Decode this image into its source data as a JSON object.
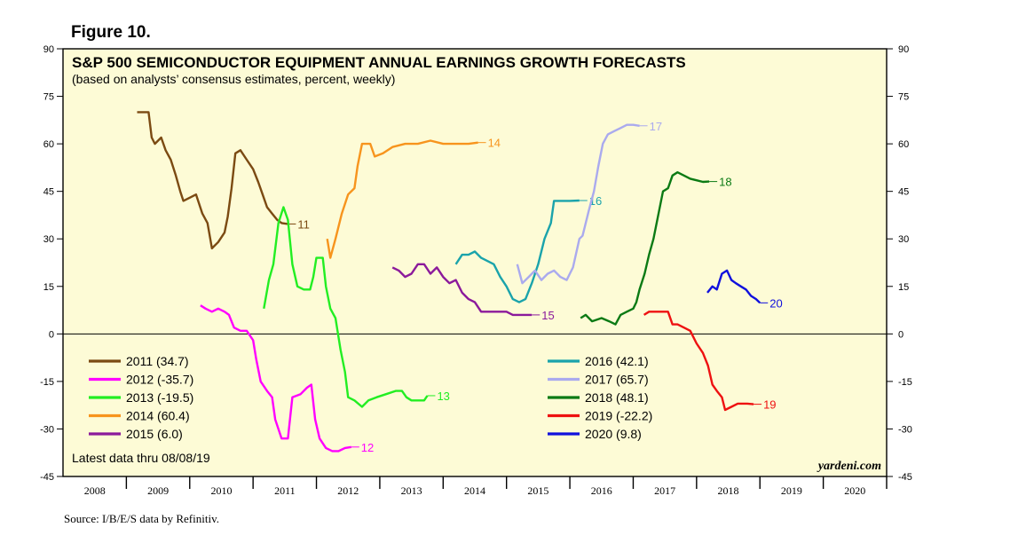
{
  "figure_label": "Figure 10.",
  "source": "Source: I/B/E/S data by Refinitiv.",
  "colors": {
    "background": "#fdfbd6",
    "2011": "#7b4a12",
    "2012": "#ff00ff",
    "2013": "#22ee22",
    "2014": "#f7941d",
    "2015": "#8b1a9b",
    "2016": "#1aa3ab",
    "2017": "#aaaaee",
    "2018": "#0b7a14",
    "2019": "#ee1111",
    "2020": "#1010dd"
  },
  "chart_data": {
    "type": "line",
    "title": "S&P 500 SEMICONDUCTOR EQUIPMENT ANNUAL EARNINGS GROWTH FORECASTS",
    "subtitle": "(based on analysts’ consensus estimates, percent, weekly)",
    "note": "Latest data thru 08/08/19",
    "watermark": "yardeni.com",
    "xlim": [
      2008,
      2021
    ],
    "ylim": [
      -45,
      90
    ],
    "yticks": [
      90,
      75,
      60,
      45,
      30,
      15,
      0,
      -15,
      -30,
      -45
    ],
    "ytick_labels": [
      "90",
      "75",
      "60",
      "45",
      "30",
      "15",
      "0",
      "-15",
      "-30",
      "-45"
    ],
    "xtick_labels": [
      "2008",
      "2009",
      "2010",
      "2011",
      "2012",
      "2013",
      "2014",
      "2015",
      "2016",
      "2017",
      "2018",
      "2019",
      "2020"
    ],
    "series": [
      {
        "name": "2011",
        "legend": "2011 (34.7)",
        "end_label": "11",
        "points": [
          [
            2009.17,
            70
          ],
          [
            2009.35,
            70
          ],
          [
            2009.4,
            62
          ],
          [
            2009.45,
            60
          ],
          [
            2009.55,
            62
          ],
          [
            2009.62,
            58
          ],
          [
            2009.7,
            55
          ],
          [
            2009.78,
            50
          ],
          [
            2009.85,
            45
          ],
          [
            2009.9,
            42
          ],
          [
            2010.0,
            43
          ],
          [
            2010.1,
            44
          ],
          [
            2010.2,
            38
          ],
          [
            2010.28,
            35
          ],
          [
            2010.35,
            27
          ],
          [
            2010.45,
            29
          ],
          [
            2010.55,
            32
          ],
          [
            2010.6,
            37
          ],
          [
            2010.66,
            46
          ],
          [
            2010.72,
            57
          ],
          [
            2010.8,
            58
          ],
          [
            2010.9,
            55
          ],
          [
            2011.0,
            52
          ],
          [
            2011.08,
            48
          ],
          [
            2011.15,
            44
          ],
          [
            2011.22,
            40
          ],
          [
            2011.3,
            38
          ],
          [
            2011.38,
            36
          ],
          [
            2011.45,
            35
          ],
          [
            2011.55,
            34.7
          ]
        ]
      },
      {
        "name": "2012",
        "legend": "2012 (-35.7)",
        "end_label": "12",
        "points": [
          [
            2010.17,
            9
          ],
          [
            2010.25,
            8
          ],
          [
            2010.35,
            7
          ],
          [
            2010.45,
            8
          ],
          [
            2010.55,
            7
          ],
          [
            2010.62,
            6
          ],
          [
            2010.7,
            2
          ],
          [
            2010.8,
            1
          ],
          [
            2010.9,
            1
          ],
          [
            2011.0,
            -2
          ],
          [
            2011.05,
            -8
          ],
          [
            2011.12,
            -15
          ],
          [
            2011.22,
            -18
          ],
          [
            2011.3,
            -20
          ],
          [
            2011.35,
            -27
          ],
          [
            2011.45,
            -33
          ],
          [
            2011.55,
            -33
          ],
          [
            2011.62,
            -20
          ],
          [
            2011.75,
            -19
          ],
          [
            2011.85,
            -17
          ],
          [
            2011.92,
            -16
          ],
          [
            2011.98,
            -27
          ],
          [
            2012.05,
            -33
          ],
          [
            2012.15,
            -36
          ],
          [
            2012.25,
            -37
          ],
          [
            2012.35,
            -37
          ],
          [
            2012.45,
            -36
          ],
          [
            2012.55,
            -35.7
          ]
        ]
      },
      {
        "name": "2013",
        "legend": "2013 (-19.5)",
        "end_label": "13",
        "points": [
          [
            2011.17,
            8
          ],
          [
            2011.25,
            17
          ],
          [
            2011.32,
            22
          ],
          [
            2011.4,
            35
          ],
          [
            2011.48,
            40
          ],
          [
            2011.55,
            36
          ],
          [
            2011.62,
            22
          ],
          [
            2011.7,
            15
          ],
          [
            2011.8,
            14
          ],
          [
            2011.9,
            14
          ],
          [
            2011.95,
            18
          ],
          [
            2012.0,
            24
          ],
          [
            2012.1,
            24
          ],
          [
            2012.15,
            15
          ],
          [
            2012.22,
            8
          ],
          [
            2012.3,
            5
          ],
          [
            2012.38,
            -5
          ],
          [
            2012.45,
            -12
          ],
          [
            2012.5,
            -20
          ],
          [
            2012.6,
            -21
          ],
          [
            2012.72,
            -23
          ],
          [
            2012.82,
            -21
          ],
          [
            2012.95,
            -20
          ],
          [
            2013.1,
            -19
          ],
          [
            2013.25,
            -18
          ],
          [
            2013.35,
            -18
          ],
          [
            2013.42,
            -20
          ],
          [
            2013.5,
            -21
          ],
          [
            2013.6,
            -21
          ],
          [
            2013.7,
            -21
          ],
          [
            2013.75,
            -19.5
          ]
        ]
      },
      {
        "name": "2014",
        "legend": "2014 (60.4)",
        "end_label": "14",
        "points": [
          [
            2012.17,
            30
          ],
          [
            2012.22,
            24
          ],
          [
            2012.3,
            30
          ],
          [
            2012.4,
            38
          ],
          [
            2012.5,
            44
          ],
          [
            2012.6,
            46
          ],
          [
            2012.65,
            53
          ],
          [
            2012.72,
            60
          ],
          [
            2012.85,
            60
          ],
          [
            2012.92,
            56
          ],
          [
            2013.05,
            57
          ],
          [
            2013.2,
            59
          ],
          [
            2013.4,
            60
          ],
          [
            2013.6,
            60
          ],
          [
            2013.8,
            61
          ],
          [
            2014.0,
            60
          ],
          [
            2014.2,
            60
          ],
          [
            2014.4,
            60
          ],
          [
            2014.55,
            60.4
          ]
        ]
      },
      {
        "name": "2015",
        "legend": "2015 (6.0)",
        "end_label": "15",
        "points": [
          [
            2013.2,
            21
          ],
          [
            2013.3,
            20
          ],
          [
            2013.4,
            18
          ],
          [
            2013.5,
            19
          ],
          [
            2013.6,
            22
          ],
          [
            2013.7,
            22
          ],
          [
            2013.8,
            19
          ],
          [
            2013.9,
            21
          ],
          [
            2014.0,
            18
          ],
          [
            2014.1,
            16
          ],
          [
            2014.2,
            17
          ],
          [
            2014.3,
            13
          ],
          [
            2014.4,
            11
          ],
          [
            2014.5,
            10
          ],
          [
            2014.6,
            7
          ],
          [
            2014.7,
            7
          ],
          [
            2014.8,
            7
          ],
          [
            2014.9,
            7
          ],
          [
            2015.0,
            7
          ],
          [
            2015.1,
            6
          ],
          [
            2015.2,
            6
          ],
          [
            2015.3,
            6
          ],
          [
            2015.4,
            6
          ]
        ]
      },
      {
        "name": "2016",
        "legend": "2016 (42.1)",
        "end_label": "16",
        "points": [
          [
            2014.2,
            22
          ],
          [
            2014.3,
            25
          ],
          [
            2014.4,
            25
          ],
          [
            2014.5,
            26
          ],
          [
            2014.6,
            24
          ],
          [
            2014.7,
            23
          ],
          [
            2014.8,
            22
          ],
          [
            2014.9,
            18
          ],
          [
            2015.0,
            15
          ],
          [
            2015.1,
            11
          ],
          [
            2015.2,
            10
          ],
          [
            2015.3,
            11
          ],
          [
            2015.4,
            16
          ],
          [
            2015.5,
            22
          ],
          [
            2015.6,
            30
          ],
          [
            2015.7,
            35
          ],
          [
            2015.75,
            42
          ],
          [
            2015.85,
            42
          ],
          [
            2016.0,
            42
          ],
          [
            2016.15,
            42.1
          ]
        ]
      },
      {
        "name": "2017",
        "legend": "2017 (65.7)",
        "end_label": "17",
        "points": [
          [
            2015.17,
            22
          ],
          [
            2015.25,
            16
          ],
          [
            2015.35,
            18
          ],
          [
            2015.45,
            20
          ],
          [
            2015.55,
            17
          ],
          [
            2015.65,
            19
          ],
          [
            2015.75,
            20
          ],
          [
            2015.85,
            18
          ],
          [
            2015.95,
            17
          ],
          [
            2016.05,
            21
          ],
          [
            2016.15,
            30
          ],
          [
            2016.2,
            31
          ],
          [
            2016.3,
            39
          ],
          [
            2016.38,
            45
          ],
          [
            2016.45,
            53
          ],
          [
            2016.52,
            60
          ],
          [
            2016.6,
            63
          ],
          [
            2016.7,
            64
          ],
          [
            2016.8,
            65
          ],
          [
            2016.9,
            66
          ],
          [
            2017.0,
            66
          ],
          [
            2017.1,
            65.7
          ]
        ]
      },
      {
        "name": "2018",
        "legend": "2018 (48.1)",
        "end_label": "18",
        "points": [
          [
            2016.17,
            5
          ],
          [
            2016.25,
            6
          ],
          [
            2016.35,
            4
          ],
          [
            2016.5,
            5
          ],
          [
            2016.62,
            4
          ],
          [
            2016.72,
            3
          ],
          [
            2016.8,
            6
          ],
          [
            2016.9,
            7
          ],
          [
            2017.0,
            8
          ],
          [
            2017.05,
            10
          ],
          [
            2017.1,
            14
          ],
          [
            2017.18,
            19
          ],
          [
            2017.25,
            25
          ],
          [
            2017.32,
            30
          ],
          [
            2017.4,
            38
          ],
          [
            2017.47,
            45
          ],
          [
            2017.55,
            46
          ],
          [
            2017.62,
            50
          ],
          [
            2017.7,
            51
          ],
          [
            2017.8,
            50
          ],
          [
            2017.9,
            49
          ],
          [
            2018.0,
            48.5
          ],
          [
            2018.1,
            48
          ],
          [
            2018.2,
            48.1
          ]
        ]
      },
      {
        "name": "2019",
        "legend": "2019 (-22.2)",
        "end_label": "19",
        "points": [
          [
            2017.17,
            6
          ],
          [
            2017.25,
            7
          ],
          [
            2017.35,
            7
          ],
          [
            2017.45,
            7
          ],
          [
            2017.55,
            7
          ],
          [
            2017.62,
            3
          ],
          [
            2017.7,
            3
          ],
          [
            2017.8,
            2
          ],
          [
            2017.9,
            1
          ],
          [
            2018.0,
            -3
          ],
          [
            2018.1,
            -6
          ],
          [
            2018.18,
            -10
          ],
          [
            2018.25,
            -16
          ],
          [
            2018.32,
            -18
          ],
          [
            2018.4,
            -20
          ],
          [
            2018.45,
            -24
          ],
          [
            2018.55,
            -23
          ],
          [
            2018.65,
            -22
          ],
          [
            2018.8,
            -22
          ],
          [
            2018.9,
            -22.2
          ]
        ]
      },
      {
        "name": "2020",
        "legend": "2020 (9.8)",
        "end_label": "20",
        "points": [
          [
            2018.17,
            13
          ],
          [
            2018.25,
            15
          ],
          [
            2018.32,
            14
          ],
          [
            2018.4,
            19
          ],
          [
            2018.48,
            20
          ],
          [
            2018.55,
            17
          ],
          [
            2018.62,
            16
          ],
          [
            2018.7,
            15
          ],
          [
            2018.78,
            14
          ],
          [
            2018.86,
            12
          ],
          [
            2018.94,
            11
          ],
          [
            2019.0,
            9.8
          ]
        ]
      }
    ]
  }
}
